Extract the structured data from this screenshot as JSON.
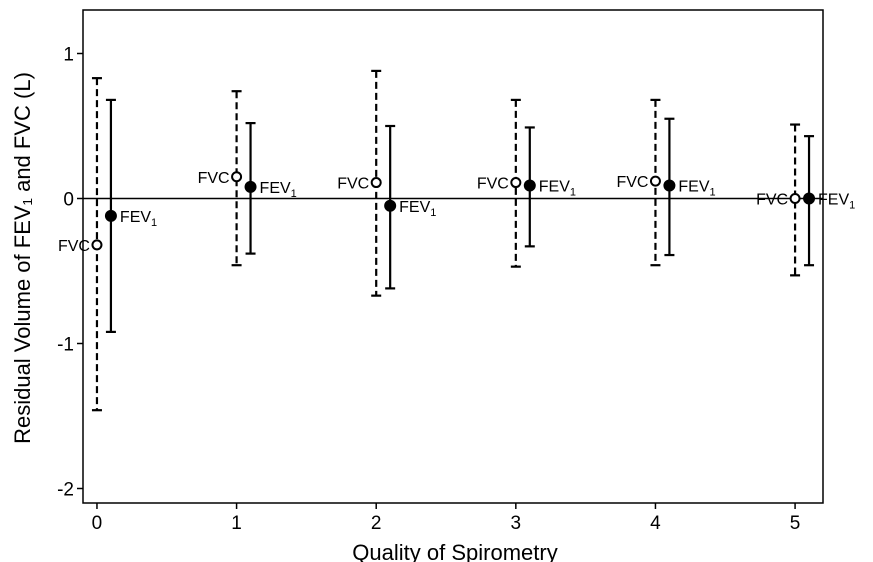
{
  "chart_data": {
    "type": "scatter",
    "title": "",
    "xlabel": "Quality of Spirometry",
    "ylabel": "Residual Volume of FEV₁ and FVC (L)",
    "xlim": [
      -0.1,
      5.2
    ],
    "ylim": [
      -2.1,
      1.3
    ],
    "x_ticks": [
      "0",
      "1",
      "2",
      "3",
      "4",
      "5"
    ],
    "y_ticks": [
      "1",
      "0",
      "-1",
      "-2"
    ],
    "reference_line_y": 0,
    "grid": false,
    "legend": "none",
    "series": [
      {
        "name": "FVC",
        "marker": "open-circle",
        "errorbar_style": "dashed",
        "x_offset": 0.0,
        "x": [
          0,
          1,
          2,
          3,
          4,
          5
        ],
        "y": [
          -0.32,
          0.15,
          0.11,
          0.11,
          0.12,
          0.0
        ],
        "lower": [
          -1.46,
          -0.46,
          -0.67,
          -0.47,
          -0.46,
          -0.53
        ],
        "upper": [
          0.83,
          0.74,
          0.88,
          0.68,
          0.68,
          0.51
        ]
      },
      {
        "name": "FEV₁",
        "marker": "filled-circle",
        "errorbar_style": "solid",
        "x_offset": 0.1,
        "x": [
          0,
          1,
          2,
          3,
          4,
          5
        ],
        "y": [
          -0.12,
          0.08,
          -0.05,
          0.09,
          0.09,
          0.0
        ],
        "lower": [
          -0.92,
          -0.38,
          -0.62,
          -0.33,
          -0.39,
          -0.46
        ],
        "upper": [
          0.68,
          0.52,
          0.5,
          0.49,
          0.55,
          0.43
        ]
      }
    ],
    "point_labels": {
      "FVC": "FVC",
      "FEV": "FEV",
      "FEV_subscript": "1"
    }
  }
}
